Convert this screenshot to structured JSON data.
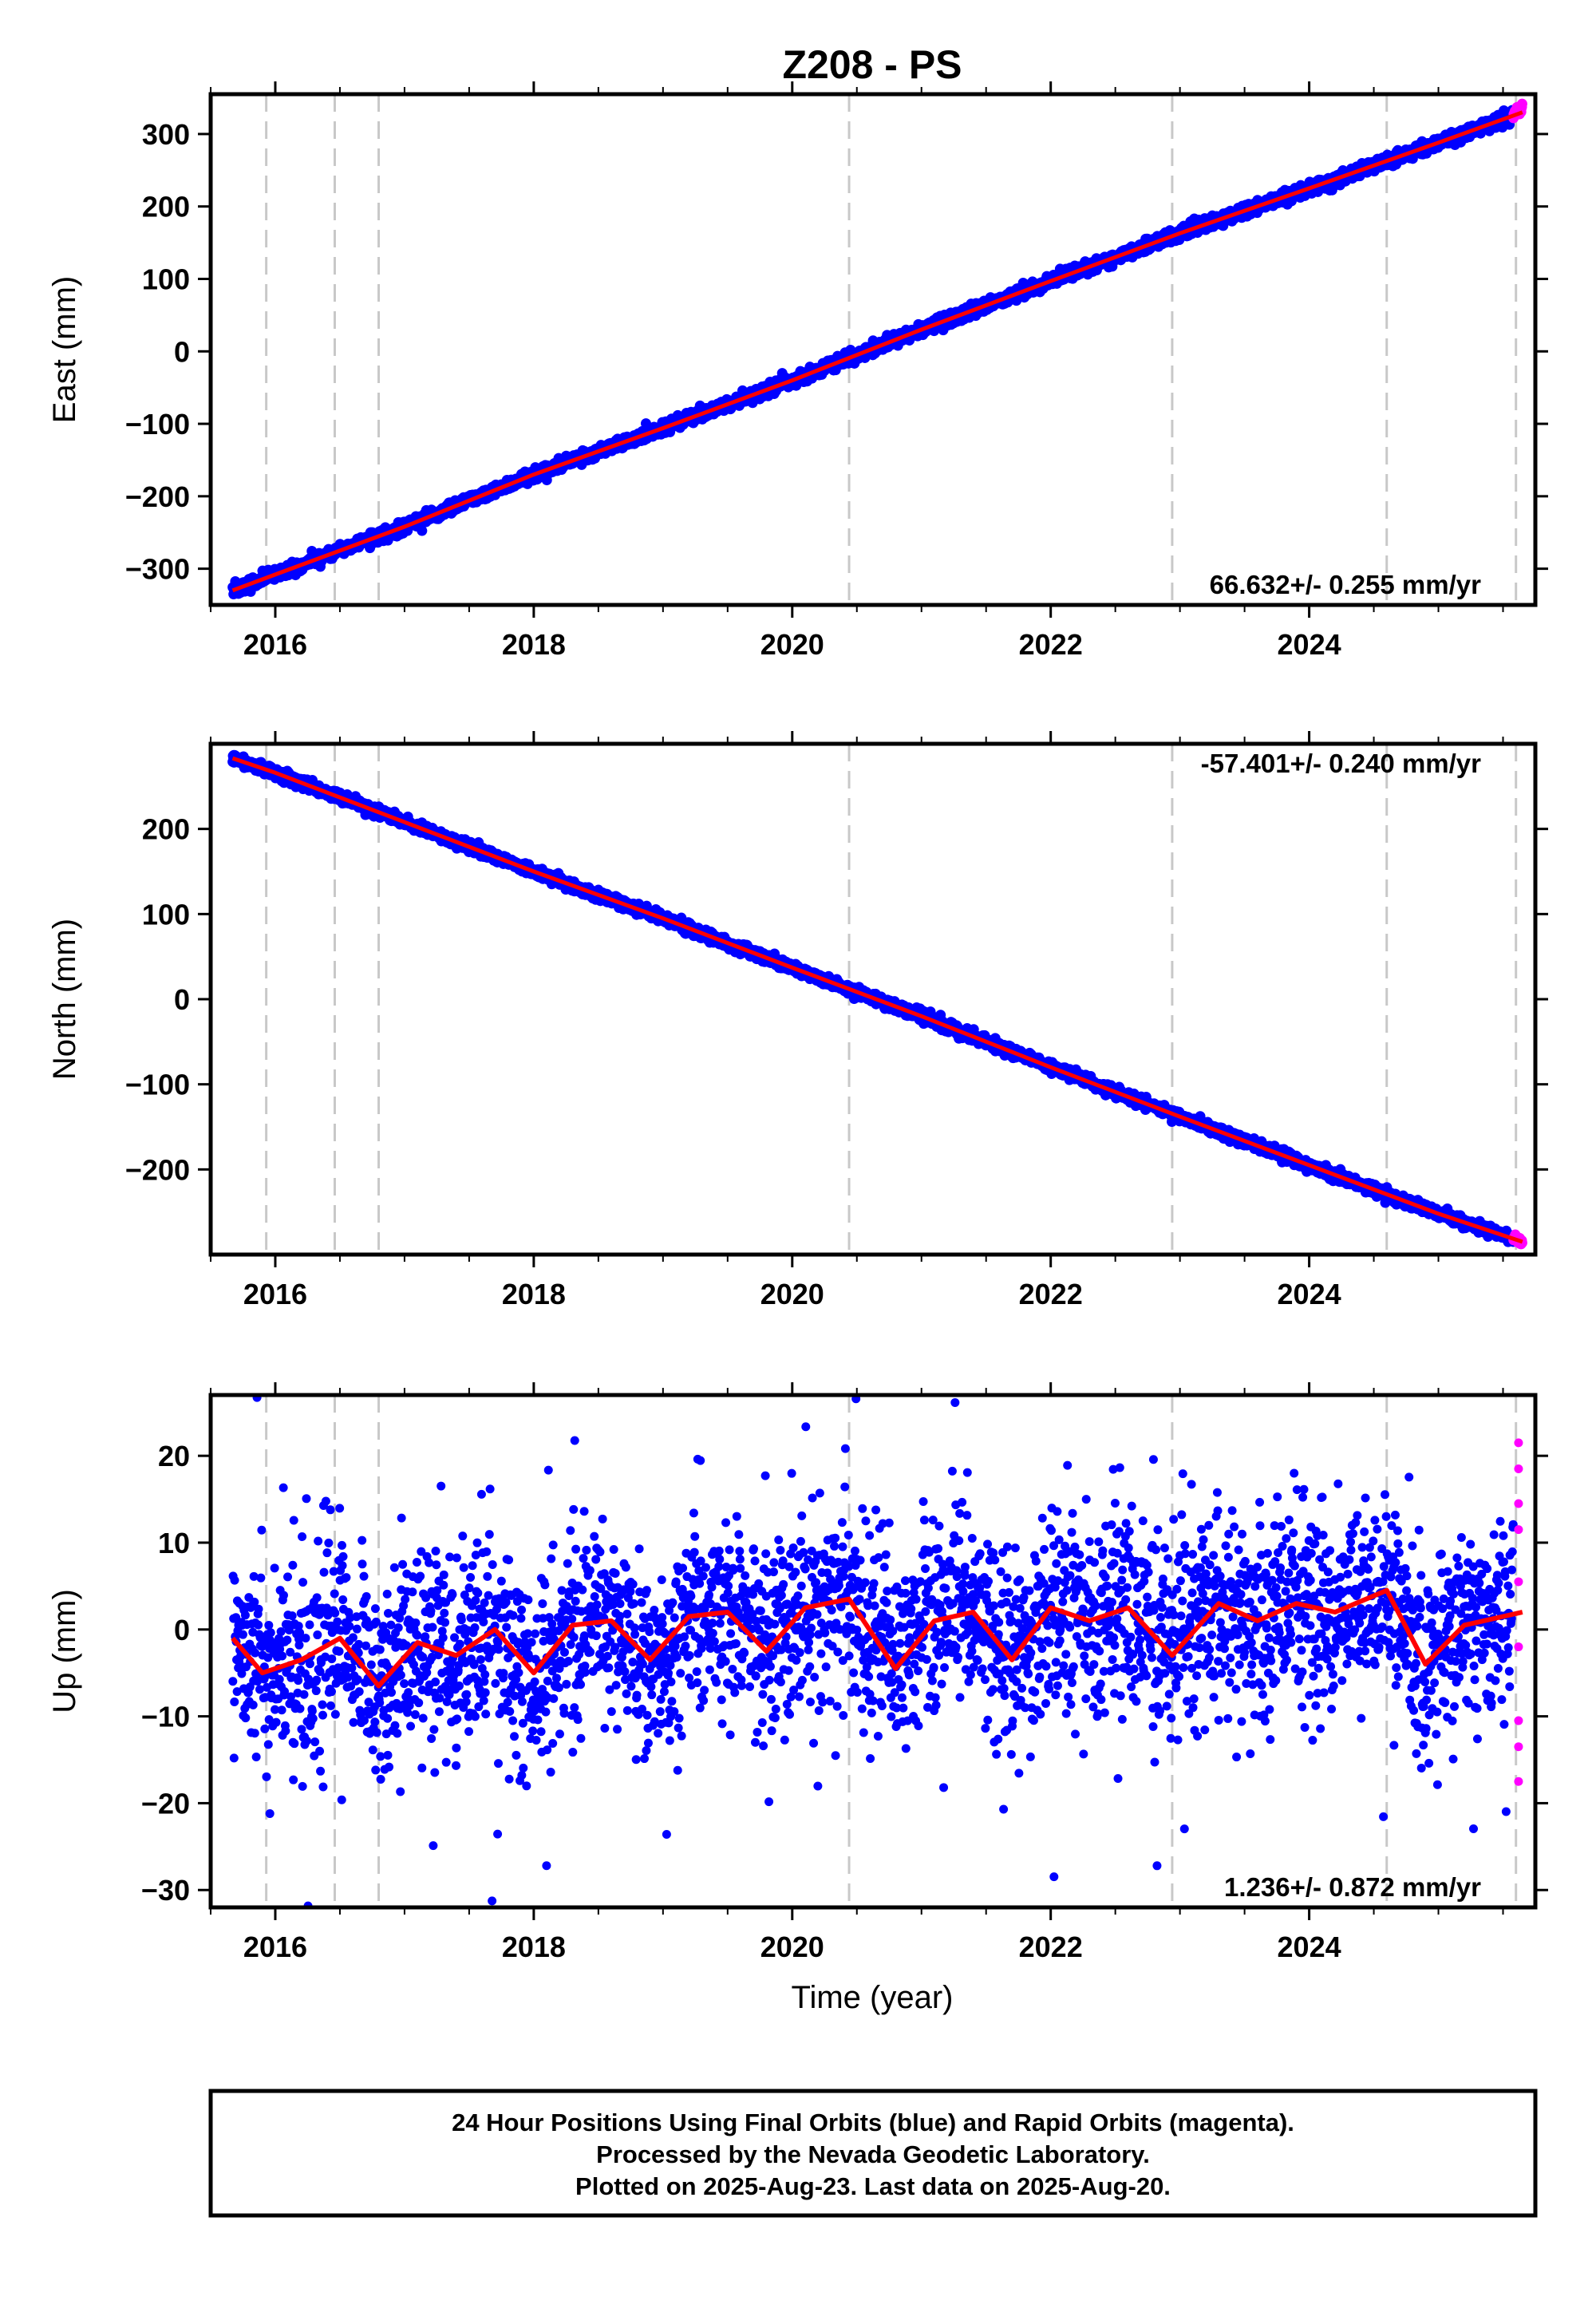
{
  "chart_data": [
    {
      "type": "scatter",
      "title": "Z208 - PS",
      "ylabel": "East (mm)",
      "xlabel": "",
      "xlim": [
        2015.5,
        2025.75
      ],
      "ylim": [
        -350,
        355
      ],
      "x_ticks": [
        2016,
        2018,
        2020,
        2022,
        2024
      ],
      "x_tick_labels": [
        "2016",
        "2018",
        "2020",
        "2022",
        "2024"
      ],
      "y_ticks": [
        300,
        200,
        100,
        0,
        -100,
        -200,
        -300
      ],
      "y_tick_labels": [
        "300",
        "200",
        "100",
        "0",
        "−100",
        "−200",
        "−300"
      ],
      "rate_label": "66.632+/- 0.255 mm/yr",
      "rate_position": "bottom-right",
      "breaks": [
        2015.93,
        2016.46,
        2016.8,
        2020.44,
        2022.94,
        2024.6,
        2025.6
      ],
      "trend": {
        "x": [
          2015.67,
          2016.0,
          2017.0,
          2018.0,
          2019.0,
          2020.0,
          2021.0,
          2022.0,
          2023.0,
          2024.0,
          2025.0,
          2025.65
        ],
        "y": [
          -330,
          -308,
          -242,
          -170,
          -106,
          -40,
          30,
          97,
          163,
          225,
          288,
          330
        ]
      },
      "series": [
        {
          "color": "#0000ff",
          "marker": "dot",
          "x_start": 2015.67,
          "x_end": 2025.58,
          "y_start": -330,
          "y_end": 325,
          "scatter_sd": 4
        },
        {
          "color": "#ff00ff",
          "marker": "dot",
          "x_start": 2025.58,
          "x_end": 2025.65,
          "y_start": 326,
          "y_end": 335,
          "scatter_sd": 3
        }
      ]
    },
    {
      "type": "scatter",
      "ylabel": "North (mm)",
      "xlabel": "",
      "xlim": [
        2015.5,
        2025.75
      ],
      "ylim": [
        -300,
        300
      ],
      "x_ticks": [
        2016,
        2018,
        2020,
        2022,
        2024
      ],
      "x_tick_labels": [
        "2016",
        "2018",
        "2020",
        "2022",
        "2024"
      ],
      "y_ticks": [
        200,
        100,
        0,
        -100,
        -200
      ],
      "y_tick_labels": [
        "200",
        "100",
        "0",
        "−100",
        "−200"
      ],
      "rate_label": "-57.401+/- 0.240 mm/yr",
      "rate_position": "top-right",
      "breaks": [
        2015.93,
        2016.46,
        2016.8,
        2020.44,
        2022.94,
        2024.6,
        2025.6
      ],
      "trend": {
        "x": [
          2015.67,
          2016.0,
          2017.0,
          2018.0,
          2019.0,
          2020.0,
          2021.0,
          2022.0,
          2023.0,
          2024.0,
          2025.0,
          2025.65
        ],
        "y": [
          283,
          266,
          208,
          150,
          95,
          37,
          -20,
          -80,
          -138,
          -195,
          -252,
          -285
        ]
      },
      "series": [
        {
          "color": "#0000ff",
          "marker": "dot",
          "x_start": 2015.67,
          "x_end": 2025.58,
          "y_start": 283,
          "y_end": -280,
          "scatter_sd": 3
        },
        {
          "color": "#ff00ff",
          "marker": "dot",
          "x_start": 2025.58,
          "x_end": 2025.65,
          "y_start": -280,
          "y_end": -285,
          "scatter_sd": 2
        }
      ]
    },
    {
      "type": "scatter",
      "ylabel": "Up (mm)",
      "xlabel": "Time (year)",
      "xlim": [
        2015.5,
        2025.75
      ],
      "ylim": [
        -32,
        27
      ],
      "x_ticks": [
        2016,
        2018,
        2020,
        2022,
        2024
      ],
      "x_tick_labels": [
        "2016",
        "2018",
        "2020",
        "2022",
        "2024"
      ],
      "y_ticks": [
        20,
        10,
        0,
        -10,
        -20,
        -30
      ],
      "y_tick_labels": [
        "20",
        "10",
        "0",
        "−10",
        "−20",
        "−30"
      ],
      "rate_label": "1.236+/- 0.872 mm/yr",
      "rate_position": "bottom-right",
      "breaks": [
        2015.93,
        2016.46,
        2016.8,
        2020.44,
        2022.94,
        2024.6,
        2025.6
      ],
      "trend": {
        "x": [
          2015.67,
          2015.9,
          2016.2,
          2016.5,
          2016.8,
          2017.1,
          2017.4,
          2017.7,
          2018.0,
          2018.3,
          2018.6,
          2018.9,
          2019.2,
          2019.5,
          2019.8,
          2020.1,
          2020.44,
          2020.8,
          2021.1,
          2021.4,
          2021.7,
          2022.0,
          2022.3,
          2022.6,
          2022.94,
          2023.3,
          2023.6,
          2023.9,
          2024.2,
          2024.6,
          2024.9,
          2025.2,
          2025.5,
          2025.65
        ],
        "y": [
          -1,
          -5,
          -3.5,
          -1,
          -6.5,
          -1.5,
          -3,
          0,
          -5,
          0.5,
          1,
          -3.5,
          1.5,
          2,
          -2.5,
          2.5,
          3.5,
          -4.5,
          1,
          2,
          -3.5,
          2.5,
          1,
          2.5,
          -3,
          3,
          1,
          3,
          2,
          4.5,
          -4,
          0.5,
          1.5,
          2
        ]
      },
      "series": [
        {
          "color": "#0000ff",
          "marker": "dot",
          "x_start": 2015.67,
          "x_end": 2025.58,
          "y_start": -2,
          "y_end": 1,
          "scatter_sd": 5.5
        },
        {
          "color": "#ff00ff",
          "marker": "dot",
          "x": [
            2025.62,
            2025.62,
            2025.62,
            2025.62,
            2025.62,
            2025.62,
            2025.62,
            2025.62,
            2025.62
          ],
          "y": [
            21.5,
            18.5,
            14.5,
            11.5,
            5.5,
            -2,
            -10.5,
            -13.5,
            -17.5
          ]
        }
      ]
    }
  ],
  "footer": {
    "line1": "24 Hour Positions Using Final Orbits (blue) and Rapid Orbits (magenta).",
    "line2": "Processed by the Nevada Geodetic Laboratory.",
    "line3": "Plotted on 2025-Aug-23. Last data on 2025-Aug-20."
  }
}
